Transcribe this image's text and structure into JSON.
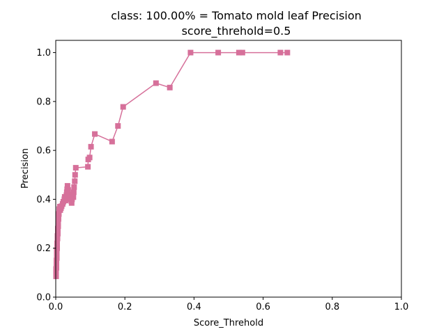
{
  "chart_data": {
    "type": "line",
    "title": "class: 100.00% = Tomato mold leaf Precision",
    "subtitle": "score_threhold=0.5",
    "xlabel": "Score_Threhold",
    "ylabel": "Precision",
    "xlim": [
      0,
      1
    ],
    "ylim": [
      0,
      1.05
    ],
    "xticks": [
      "0.0",
      "0.2",
      "0.4",
      "0.6",
      "0.8",
      "1.0"
    ],
    "yticks": [
      "0.0",
      "0.2",
      "0.4",
      "0.6",
      "0.8",
      "1.0"
    ],
    "grid": false,
    "line_color": "#d6709a",
    "marker": "square",
    "series": [
      {
        "x": [
          0.67,
          0.65,
          0.54,
          0.53,
          0.47,
          0.39,
          0.33,
          0.29,
          0.195,
          0.18,
          0.163,
          0.113,
          0.102,
          0.098,
          0.094,
          0.093,
          0.058,
          0.056,
          0.055,
          0.053,
          0.052,
          0.051,
          0.049,
          0.047,
          0.046,
          0.045,
          0.043,
          0.04,
          0.038,
          0.036,
          0.034,
          0.033,
          0.032,
          0.031,
          0.03,
          0.028,
          0.026,
          0.025,
          0.022,
          0.02,
          0.017,
          0.015,
          0.013,
          0.012,
          0.01,
          0.009,
          0.008,
          0.007,
          0.007,
          0.006,
          0.006,
          0.005,
          0.005,
          0.004,
          0.004,
          0.004,
          0.003,
          0.003,
          0.003,
          0.003,
          0.002,
          0.002,
          0.002,
          0.002,
          0.002,
          0.001,
          0.001,
          0.001,
          0.001,
          0.001,
          0.001,
          0.001
        ],
        "y": [
          1.0,
          1.0,
          1.0,
          1.0,
          1.0,
          1.0,
          0.857,
          0.875,
          0.778,
          0.7,
          0.636,
          0.667,
          0.615,
          0.571,
          0.563,
          0.533,
          0.529,
          0.5,
          0.474,
          0.45,
          0.429,
          0.409,
          0.417,
          0.4,
          0.385,
          0.393,
          0.414,
          0.4,
          0.419,
          0.438,
          0.455,
          0.441,
          0.429,
          0.417,
          0.405,
          0.395,
          0.41,
          0.4,
          0.39,
          0.381,
          0.372,
          0.364,
          0.356,
          0.37,
          0.36,
          0.34,
          0.32,
          0.3,
          0.29,
          0.28,
          0.26,
          0.25,
          0.24,
          0.22,
          0.21,
          0.2,
          0.19,
          0.18,
          0.17,
          0.16,
          0.15,
          0.14,
          0.13,
          0.125,
          0.12,
          0.115,
          0.11,
          0.105,
          0.1,
          0.095,
          0.09,
          0.085
        ]
      }
    ]
  }
}
